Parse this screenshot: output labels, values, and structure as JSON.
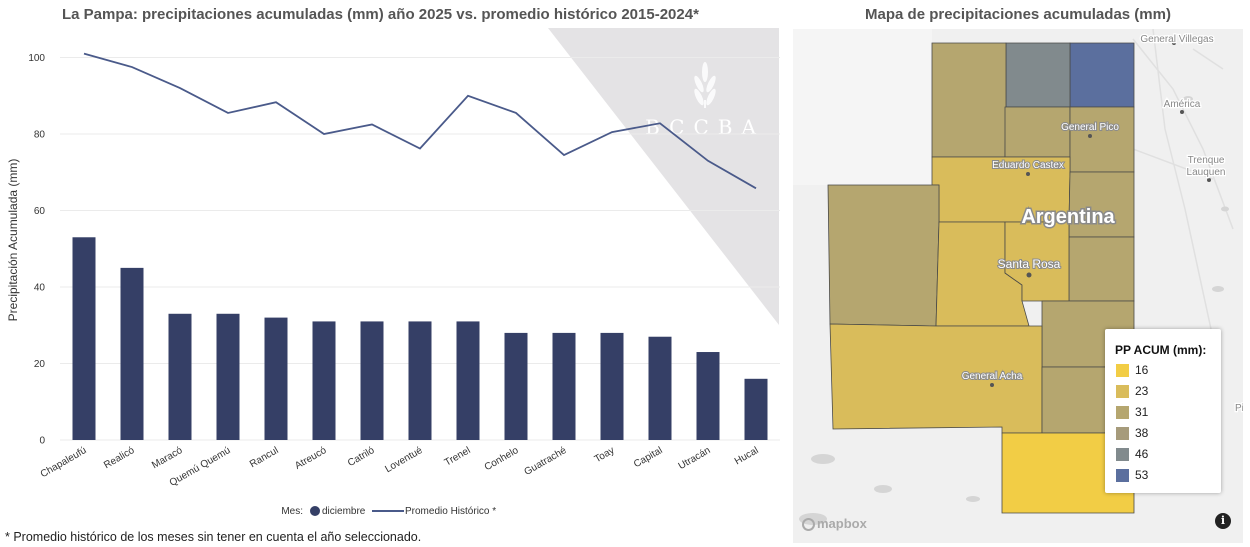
{
  "chart_title": "La Pampa: precipitaciones acumuladas (mm) año 2025 vs. promedio histórico 2015-2024*",
  "map_title": "Mapa de precipitaciones acumuladas (mm)",
  "footnote": "* Promedio histórico de los meses sin tener en cuenta el año seleccionado.",
  "watermark": "BCCBA",
  "chart_data": {
    "type": "bar",
    "categories": [
      "Chapaleufú",
      "Realicó",
      "Maracó",
      "Quemú Quemú",
      "Rancul",
      "Atreucó",
      "Catriló",
      "Loventué",
      "Trenel",
      "Conhelo",
      "Guatraché",
      "Toay",
      "Capital",
      "Utracán",
      "Hucal"
    ],
    "series": [
      {
        "name": "diciembre",
        "type": "bar",
        "color": "#353f66",
        "values": [
          53,
          45,
          33,
          33,
          32,
          31,
          31,
          31,
          31,
          28,
          28,
          28,
          27,
          23,
          16
        ]
      },
      {
        "name": "Promedio Histórico *",
        "type": "line",
        "color": "#4a5a8a",
        "values": [
          101,
          97.5,
          92,
          85.5,
          88.3,
          80,
          82.5,
          76.2,
          90,
          85.5,
          74.5,
          80.5,
          82.8,
          73,
          65.8
        ]
      }
    ],
    "ylabel": "Precipitación Acumulada (mm)",
    "xlabel": "",
    "ylim": [
      0,
      105
    ],
    "yticks": [
      0,
      20,
      40,
      60,
      80,
      100
    ],
    "legend_title": "Mes:",
    "legend_position": "bottom-center",
    "grid": true
  },
  "map": {
    "legend_title": "PP ACUM (mm):",
    "legend_items": [
      {
        "label": "16",
        "color": "#f2cd45"
      },
      {
        "label": "23",
        "color": "#d9bc5b"
      },
      {
        "label": "31",
        "color": "#b5a66f"
      },
      {
        "label": "38",
        "color": "#a69b7b"
      },
      {
        "label": "46",
        "color": "#818a8d"
      },
      {
        "label": "53",
        "color": "#5b6f9e"
      }
    ],
    "labels": {
      "country": "Argentina",
      "general_villegas": "General Villegas",
      "america": "América",
      "trenque_lauquen": "Trenque Lauquen",
      "general_pico": "General Pico",
      "eduardo_castex": "Eduardo Castex",
      "santa_rosa": "Santa Rosa",
      "general_acha": "General Acha",
      "pi": "Pi"
    },
    "attribution": "mapbox",
    "info_icon": "i"
  }
}
